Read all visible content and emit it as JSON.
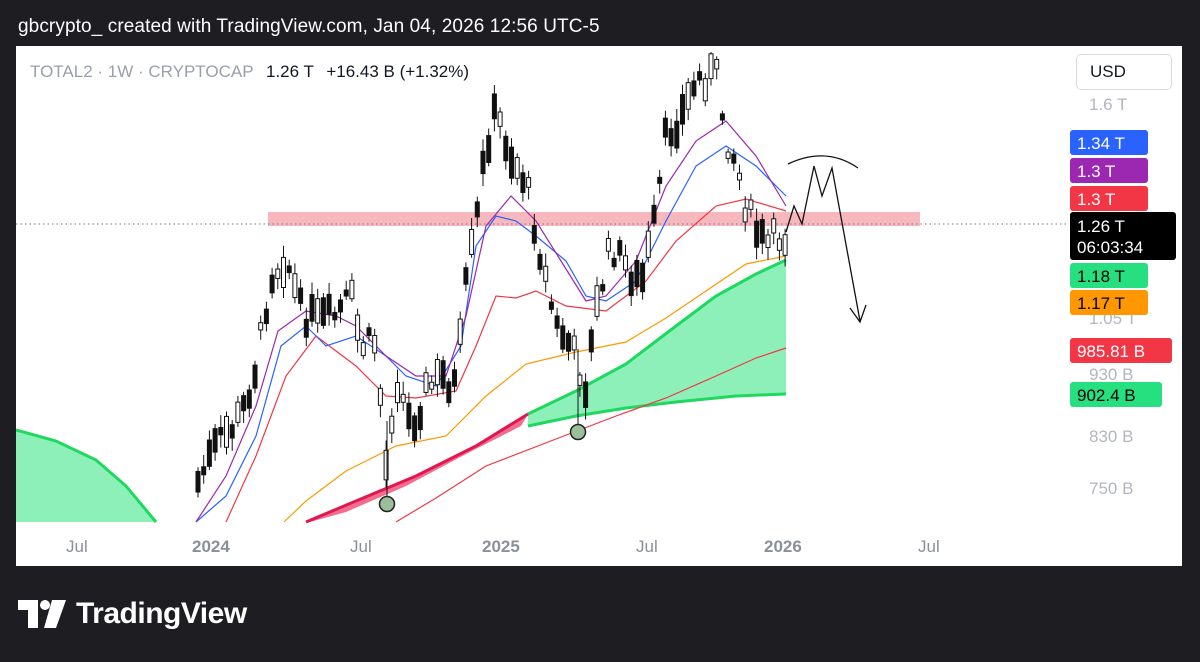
{
  "header": {
    "credit": "gbcrypto_ created with TradingView.com, Jan 04, 2026 12:56 UTC-5"
  },
  "symbol": {
    "name": "TOTAL2 · 1W · CRYPTOCAP",
    "price": "1.26 T",
    "change": "+16.43 B (+1.32%)"
  },
  "currency_button": "USD",
  "brand": {
    "name": "TradingView"
  },
  "chart_data": {
    "type": "candlestick",
    "title": "TOTAL2 · 1W · CRYPTOCAP",
    "x_axis": {
      "tick_labels": [
        "Jul",
        "2024",
        "Jul",
        "2025",
        "Jul",
        "2026",
        "Jul"
      ]
    },
    "y_axis": {
      "scale": "log",
      "tick_labels": [
        "1.6 T",
        "1.05 T",
        "930 B",
        "830 B",
        "750 B"
      ]
    },
    "price_badges": [
      {
        "label": "1.34 T",
        "color": "#2962ff"
      },
      {
        "label": "1.3 T",
        "color": "#9c27b0"
      },
      {
        "label": "1.3 T",
        "color": "#f23645"
      },
      {
        "label": "1.26 T",
        "sub": "06:03:34",
        "color": "#000000"
      },
      {
        "label": "1.18 T",
        "color": "#26e07f"
      },
      {
        "label": "1.17 T",
        "color": "#ff9800"
      },
      {
        "label": "985.81 B",
        "color": "#f23645"
      },
      {
        "label": "902.4 B",
        "color": "#26e07f"
      }
    ],
    "resistance_zone": [
      "1.24 T",
      "1.29 T"
    ],
    "current_price": "1.26 T"
  }
}
